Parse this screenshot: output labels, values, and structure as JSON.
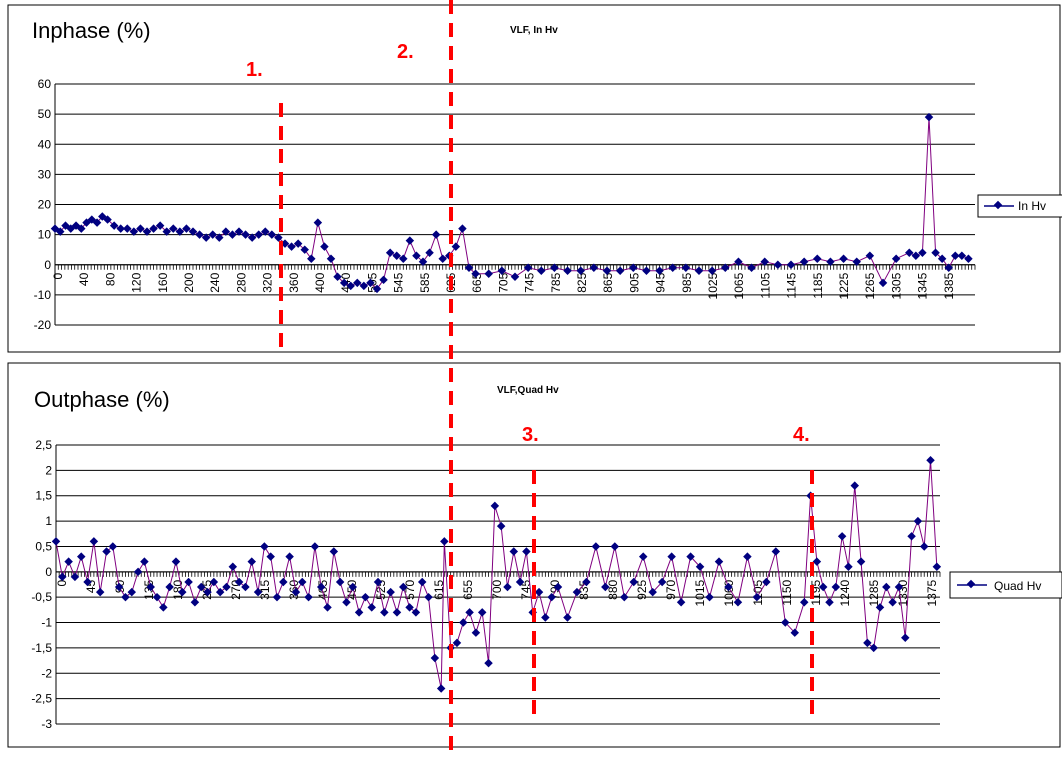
{
  "chart_data": [
    {
      "type": "line",
      "title": "Inphase (%)",
      "subtitle": "VLF, In Hv",
      "ylim": [
        -20,
        60
      ],
      "yticks": [
        -20,
        -10,
        0,
        10,
        20,
        30,
        40,
        50,
        60
      ],
      "x_tick_labels": [
        "0",
        "40",
        "80",
        "120",
        "160",
        "200",
        "240",
        "280",
        "320",
        "360",
        "400",
        "440",
        "505",
        "545",
        "585",
        "625",
        "665",
        "705",
        "745",
        "785",
        "825",
        "865",
        "905",
        "945",
        "985",
        "1025",
        "1065",
        "1105",
        "1145",
        "1185",
        "1225",
        "1265",
        "1305",
        "1345",
        "1385"
      ],
      "x_range": [
        0,
        1400
      ],
      "grid": true,
      "legend": "right",
      "series": [
        {
          "name": "In Hv",
          "color": "#000080",
          "line_color": "#800080",
          "x": [
            0,
            8,
            16,
            24,
            32,
            40,
            48,
            56,
            64,
            72,
            80,
            90,
            100,
            110,
            120,
            130,
            140,
            150,
            160,
            170,
            180,
            190,
            200,
            210,
            220,
            230,
            240,
            250,
            260,
            270,
            280,
            290,
            300,
            310,
            320,
            330,
            340,
            350,
            360,
            370,
            380,
            390,
            400,
            410,
            420,
            430,
            440,
            450,
            460,
            470,
            480,
            490,
            500,
            510,
            520,
            530,
            540,
            550,
            560,
            570,
            580,
            590,
            600,
            610,
            620,
            630,
            640,
            660,
            680,
            700,
            720,
            740,
            760,
            780,
            800,
            820,
            840,
            860,
            880,
            900,
            920,
            940,
            960,
            980,
            1000,
            1020,
            1040,
            1060,
            1080,
            1100,
            1120,
            1140,
            1160,
            1180,
            1200,
            1220,
            1240,
            1260,
            1280,
            1300,
            1310,
            1320,
            1330,
            1340,
            1350,
            1360,
            1370,
            1380,
            1390
          ],
          "y": [
            12,
            11,
            13,
            12,
            13,
            12,
            14,
            15,
            14,
            16,
            15,
            13,
            12,
            12,
            11,
            12,
            11,
            12,
            13,
            11,
            12,
            11,
            12,
            11,
            10,
            9,
            10,
            9,
            11,
            10,
            11,
            10,
            9,
            10,
            11,
            10,
            9,
            7,
            6,
            7,
            5,
            2,
            14,
            6,
            2,
            -4,
            -6,
            -7,
            -6,
            -7,
            -6,
            -8,
            -5,
            4,
            3,
            2,
            8,
            3,
            1,
            4,
            10,
            2,
            3,
            6,
            12,
            -1,
            -3,
            -3,
            -2,
            -4,
            -1,
            -2,
            -1,
            -2,
            -2,
            -1,
            -2,
            -2,
            -1,
            -2,
            -2,
            -1,
            -1,
            -2,
            -2,
            -1,
            1,
            -1,
            1,
            0,
            0,
            1,
            2,
            1,
            2,
            1,
            3,
            -6,
            2,
            4,
            3,
            4,
            49,
            4,
            2,
            -1,
            3,
            3,
            2
          ]
        }
      ]
    },
    {
      "type": "line",
      "title": "Outphase (%)",
      "subtitle": "VLF,Quad Hv",
      "ylim": [
        -3,
        2.5
      ],
      "yticks": [
        "-3",
        "-2,5",
        "-2",
        "-1,5",
        "-1",
        "-0,5",
        "0",
        "0,5",
        "1",
        "1,5",
        "2",
        "2,5"
      ],
      "x_tick_labels": [
        "0",
        "45",
        "90",
        "135",
        "180",
        "225",
        "270",
        "315",
        "360",
        "405",
        "450",
        "525",
        "570",
        "615",
        "655",
        "700",
        "745",
        "790",
        "835",
        "880",
        "925",
        "970",
        "1015",
        "1060",
        "1105",
        "1150",
        "1195",
        "1240",
        "1285",
        "1330",
        "1375"
      ],
      "x_range": [
        0,
        1400
      ],
      "grid": true,
      "legend": "right",
      "series": [
        {
          "name": "Quad Hv",
          "color": "#000080",
          "line_color": "#800080",
          "x": [
            0,
            10,
            20,
            30,
            40,
            50,
            60,
            70,
            80,
            90,
            100,
            110,
            120,
            130,
            140,
            150,
            160,
            170,
            180,
            190,
            200,
            210,
            220,
            230,
            240,
            250,
            260,
            270,
            280,
            290,
            300,
            310,
            320,
            330,
            340,
            350,
            360,
            370,
            380,
            390,
            400,
            410,
            420,
            430,
            440,
            450,
            460,
            470,
            480,
            490,
            500,
            510,
            520,
            530,
            540,
            550,
            560,
            570,
            580,
            590,
            600,
            610,
            615,
            625,
            635,
            645,
            655,
            665,
            675,
            685,
            695,
            705,
            715,
            725,
            735,
            745,
            755,
            765,
            775,
            785,
            795,
            810,
            825,
            840,
            855,
            870,
            885,
            900,
            915,
            930,
            945,
            960,
            975,
            990,
            1005,
            1020,
            1035,
            1050,
            1065,
            1080,
            1095,
            1110,
            1125,
            1140,
            1155,
            1170,
            1185,
            1195,
            1205,
            1215,
            1225,
            1235,
            1245,
            1255,
            1265,
            1275,
            1285,
            1295,
            1305,
            1315,
            1325,
            1335,
            1345,
            1355,
            1365,
            1375,
            1385,
            1395
          ],
          "y": [
            0.6,
            -0.1,
            0.2,
            -0.1,
            0.3,
            -0.2,
            0.6,
            -0.4,
            0.4,
            0.5,
            -0.3,
            -0.5,
            -0.4,
            0,
            0.2,
            -0.3,
            -0.5,
            -0.7,
            -0.3,
            0.2,
            -0.4,
            -0.2,
            -0.6,
            -0.3,
            -0.4,
            -0.2,
            -0.4,
            -0.3,
            0.1,
            -0.2,
            -0.3,
            0.2,
            -0.4,
            0.5,
            0.3,
            -0.5,
            -0.2,
            0.3,
            -0.4,
            -0.2,
            -0.5,
            0.5,
            -0.3,
            -0.7,
            0.4,
            -0.2,
            -0.6,
            -0.3,
            -0.8,
            -0.5,
            -0.7,
            -0.2,
            -0.8,
            -0.4,
            -0.8,
            -0.3,
            -0.7,
            -0.8,
            -0.2,
            -0.5,
            -1.7,
            -2.3,
            0.6,
            -1.5,
            -1.4,
            -1.0,
            -0.8,
            -1.2,
            -0.8,
            -1.8,
            1.3,
            0.9,
            -0.3,
            0.4,
            -0.2,
            0.4,
            -0.8,
            -0.4,
            -0.9,
            -0.5,
            -0.3,
            -0.9,
            -0.4,
            -0.2,
            0.5,
            -0.3,
            0.5,
            -0.5,
            -0.2,
            0.3,
            -0.4,
            -0.2,
            0.3,
            -0.6,
            0.3,
            0.1,
            -0.5,
            0.2,
            -0.3,
            -0.6,
            0.3,
            -0.5,
            -0.2,
            0.4,
            -1.0,
            -1.2,
            -0.6,
            1.5,
            0.2,
            -0.3,
            -0.6,
            -0.3,
            0.7,
            0.1,
            1.7,
            0.2,
            -1.4,
            -1.5,
            -0.7,
            -0.3,
            -0.6,
            -0.3,
            -1.3,
            0.7,
            1.0,
            0.5,
            2.2,
            0.1
          ]
        }
      ]
    }
  ],
  "annotations": {
    "markers": [
      "1.",
      "2.",
      "3.",
      "4."
    ]
  }
}
